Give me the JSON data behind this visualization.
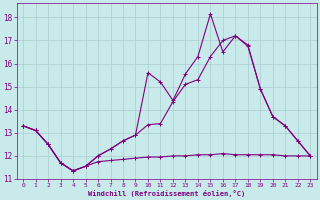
{
  "xlabel": "Windchill (Refroidissement éolien,°C)",
  "bg_color": "#c8eaea",
  "grid_color": "#aacccc",
  "line_color": "#800080",
  "xlim": [
    -0.5,
    23.5
  ],
  "ylim": [
    11.0,
    18.6
  ],
  "yticks": [
    11,
    12,
    13,
    14,
    15,
    16,
    17,
    18
  ],
  "xticks": [
    0,
    1,
    2,
    3,
    4,
    5,
    6,
    7,
    8,
    9,
    10,
    11,
    12,
    13,
    14,
    15,
    16,
    17,
    18,
    19,
    20,
    21,
    22,
    23
  ],
  "line1_x": [
    0,
    1,
    2,
    3,
    4,
    5,
    6,
    7,
    8,
    9,
    10,
    11,
    12,
    13,
    14,
    15,
    16,
    17,
    18,
    19,
    20,
    21,
    22,
    23
  ],
  "line1_y": [
    13.3,
    13.1,
    12.5,
    11.7,
    11.35,
    11.55,
    11.75,
    11.8,
    11.85,
    11.9,
    11.95,
    11.95,
    12.0,
    12.0,
    12.05,
    12.05,
    12.1,
    12.05,
    12.05,
    12.05,
    12.05,
    12.0,
    12.0,
    12.0
  ],
  "line2_x": [
    0,
    1,
    2,
    3,
    4,
    5,
    6,
    7,
    8,
    9,
    10,
    11,
    12,
    13,
    14,
    15,
    16,
    17,
    18,
    19,
    20,
    21,
    22,
    23
  ],
  "line2_y": [
    13.3,
    13.1,
    12.5,
    11.7,
    11.35,
    11.55,
    12.0,
    12.3,
    12.65,
    12.9,
    13.35,
    13.4,
    14.35,
    15.1,
    15.3,
    16.3,
    17.0,
    17.2,
    16.75,
    14.9,
    13.7,
    13.3,
    12.65,
    12.0
  ],
  "line3_x": [
    0,
    1,
    2,
    3,
    4,
    5,
    6,
    7,
    8,
    9,
    10,
    11,
    12,
    13,
    14,
    15,
    16,
    17,
    18,
    19,
    20,
    21,
    22,
    23
  ],
  "line3_y": [
    13.3,
    13.1,
    12.5,
    11.7,
    11.35,
    11.55,
    12.0,
    12.3,
    12.65,
    12.9,
    15.6,
    15.2,
    14.4,
    15.55,
    16.3,
    18.15,
    16.5,
    17.2,
    16.8,
    14.9,
    13.7,
    13.3,
    12.65,
    12.0
  ]
}
